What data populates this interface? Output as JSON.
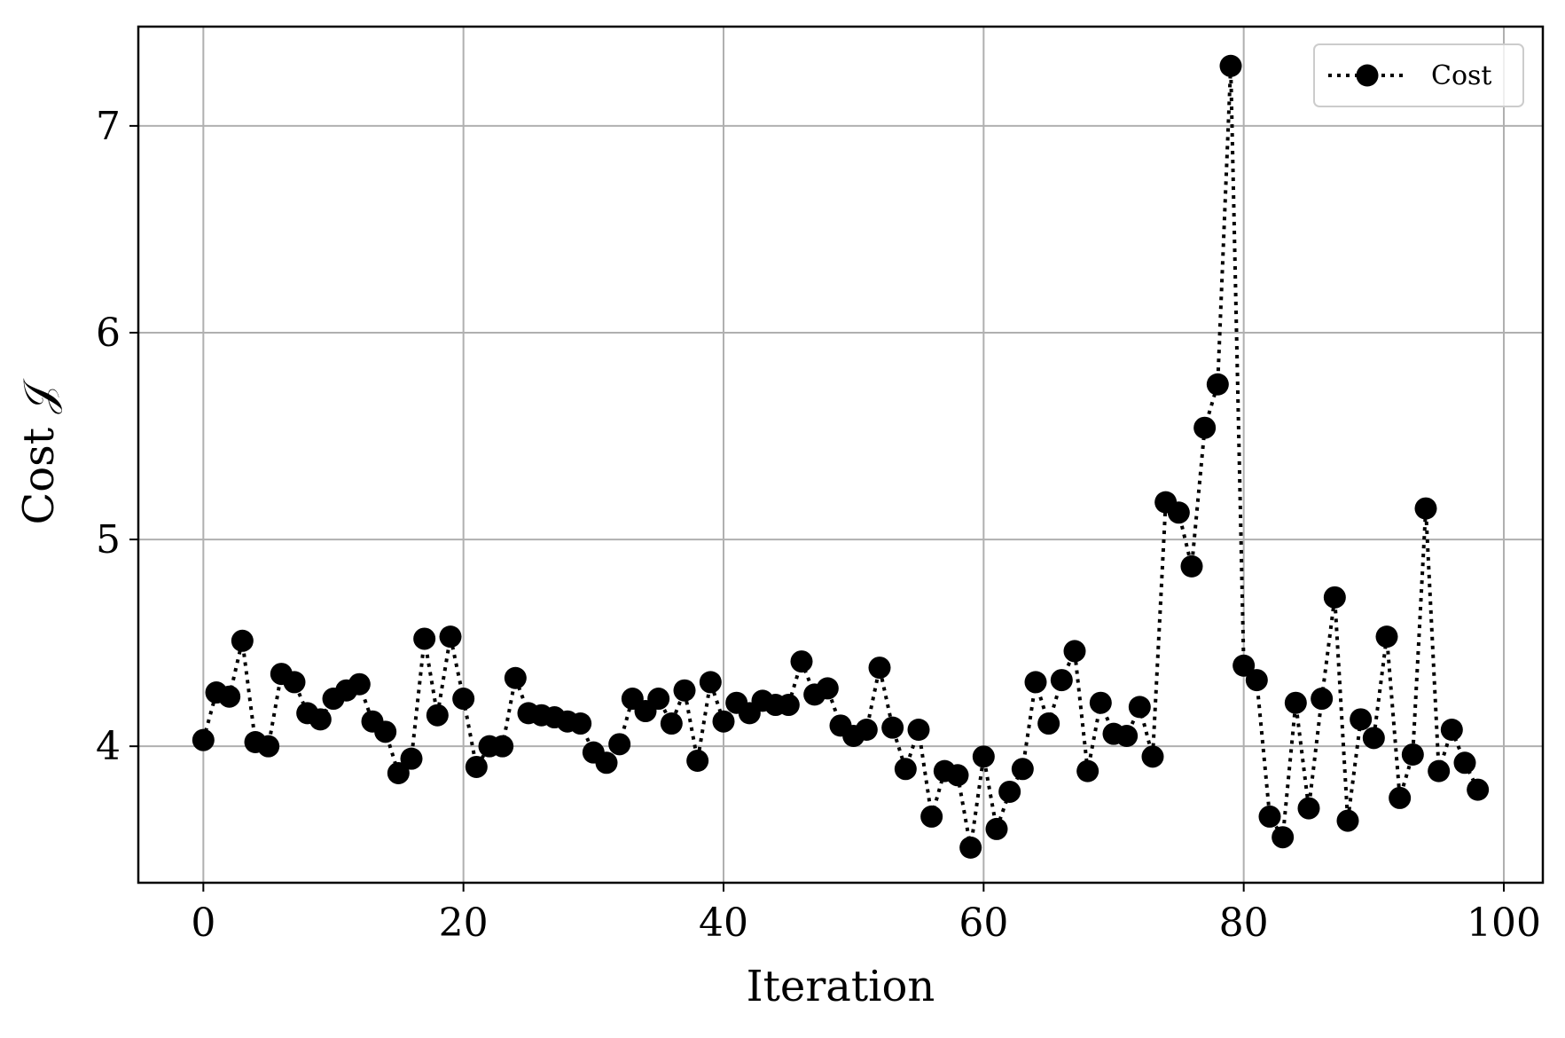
{
  "chart_data": {
    "type": "line",
    "xlabel": "Iteration",
    "ylabel": "Cost 𝒥",
    "xlim": [
      -5,
      103
    ],
    "ylim": [
      3.34,
      7.48
    ],
    "xticks": [
      0,
      20,
      40,
      60,
      80,
      100
    ],
    "yticks": [
      4,
      5,
      6,
      7
    ],
    "grid": true,
    "legend_position": "top-right",
    "line_style": "dotted",
    "marker": "circle",
    "color": "#000000",
    "series": [
      {
        "name": "Cost",
        "x": [
          0,
          1,
          2,
          3,
          4,
          5,
          6,
          7,
          8,
          9,
          10,
          11,
          12,
          13,
          14,
          15,
          16,
          17,
          18,
          19,
          20,
          21,
          22,
          23,
          24,
          25,
          26,
          27,
          28,
          29,
          30,
          31,
          32,
          33,
          34,
          35,
          36,
          37,
          38,
          39,
          40,
          41,
          42,
          43,
          44,
          45,
          46,
          47,
          48,
          49,
          50,
          51,
          52,
          53,
          54,
          55,
          56,
          57,
          58,
          59,
          60,
          61,
          62,
          63,
          64,
          65,
          66,
          67,
          68,
          69,
          70,
          71,
          72,
          73,
          74,
          75,
          76,
          77,
          78,
          79,
          80,
          81,
          82,
          83,
          84,
          85,
          86,
          87,
          88,
          89,
          90,
          91,
          92,
          93,
          94,
          95,
          96,
          97,
          98
        ],
        "y": [
          4.03,
          4.26,
          4.24,
          4.51,
          4.02,
          4.0,
          4.35,
          4.31,
          4.16,
          4.13,
          4.23,
          4.27,
          4.3,
          4.12,
          4.07,
          3.87,
          3.94,
          4.52,
          4.15,
          4.53,
          4.23,
          3.9,
          4.0,
          4.0,
          4.33,
          4.16,
          4.15,
          4.14,
          4.12,
          4.11,
          3.97,
          3.92,
          4.01,
          4.23,
          4.17,
          4.23,
          4.11,
          4.27,
          3.93,
          4.31,
          4.12,
          4.21,
          4.16,
          4.22,
          4.2,
          4.2,
          4.41,
          4.25,
          4.28,
          4.1,
          4.05,
          4.08,
          4.38,
          4.09,
          3.89,
          4.08,
          3.66,
          3.88,
          3.86,
          3.51,
          3.95,
          3.6,
          3.78,
          3.89,
          4.31,
          4.11,
          4.32,
          4.46,
          3.88,
          4.21,
          4.06,
          4.05,
          4.19,
          3.95,
          5.18,
          5.13,
          4.87,
          5.54,
          5.75,
          7.29,
          4.39,
          4.32,
          3.66,
          3.56,
          4.21,
          3.7,
          4.23,
          4.72,
          3.64,
          4.13,
          4.04,
          4.53,
          3.75,
          3.96,
          5.15,
          3.88,
          4.08,
          3.92,
          3.79
        ]
      }
    ]
  }
}
